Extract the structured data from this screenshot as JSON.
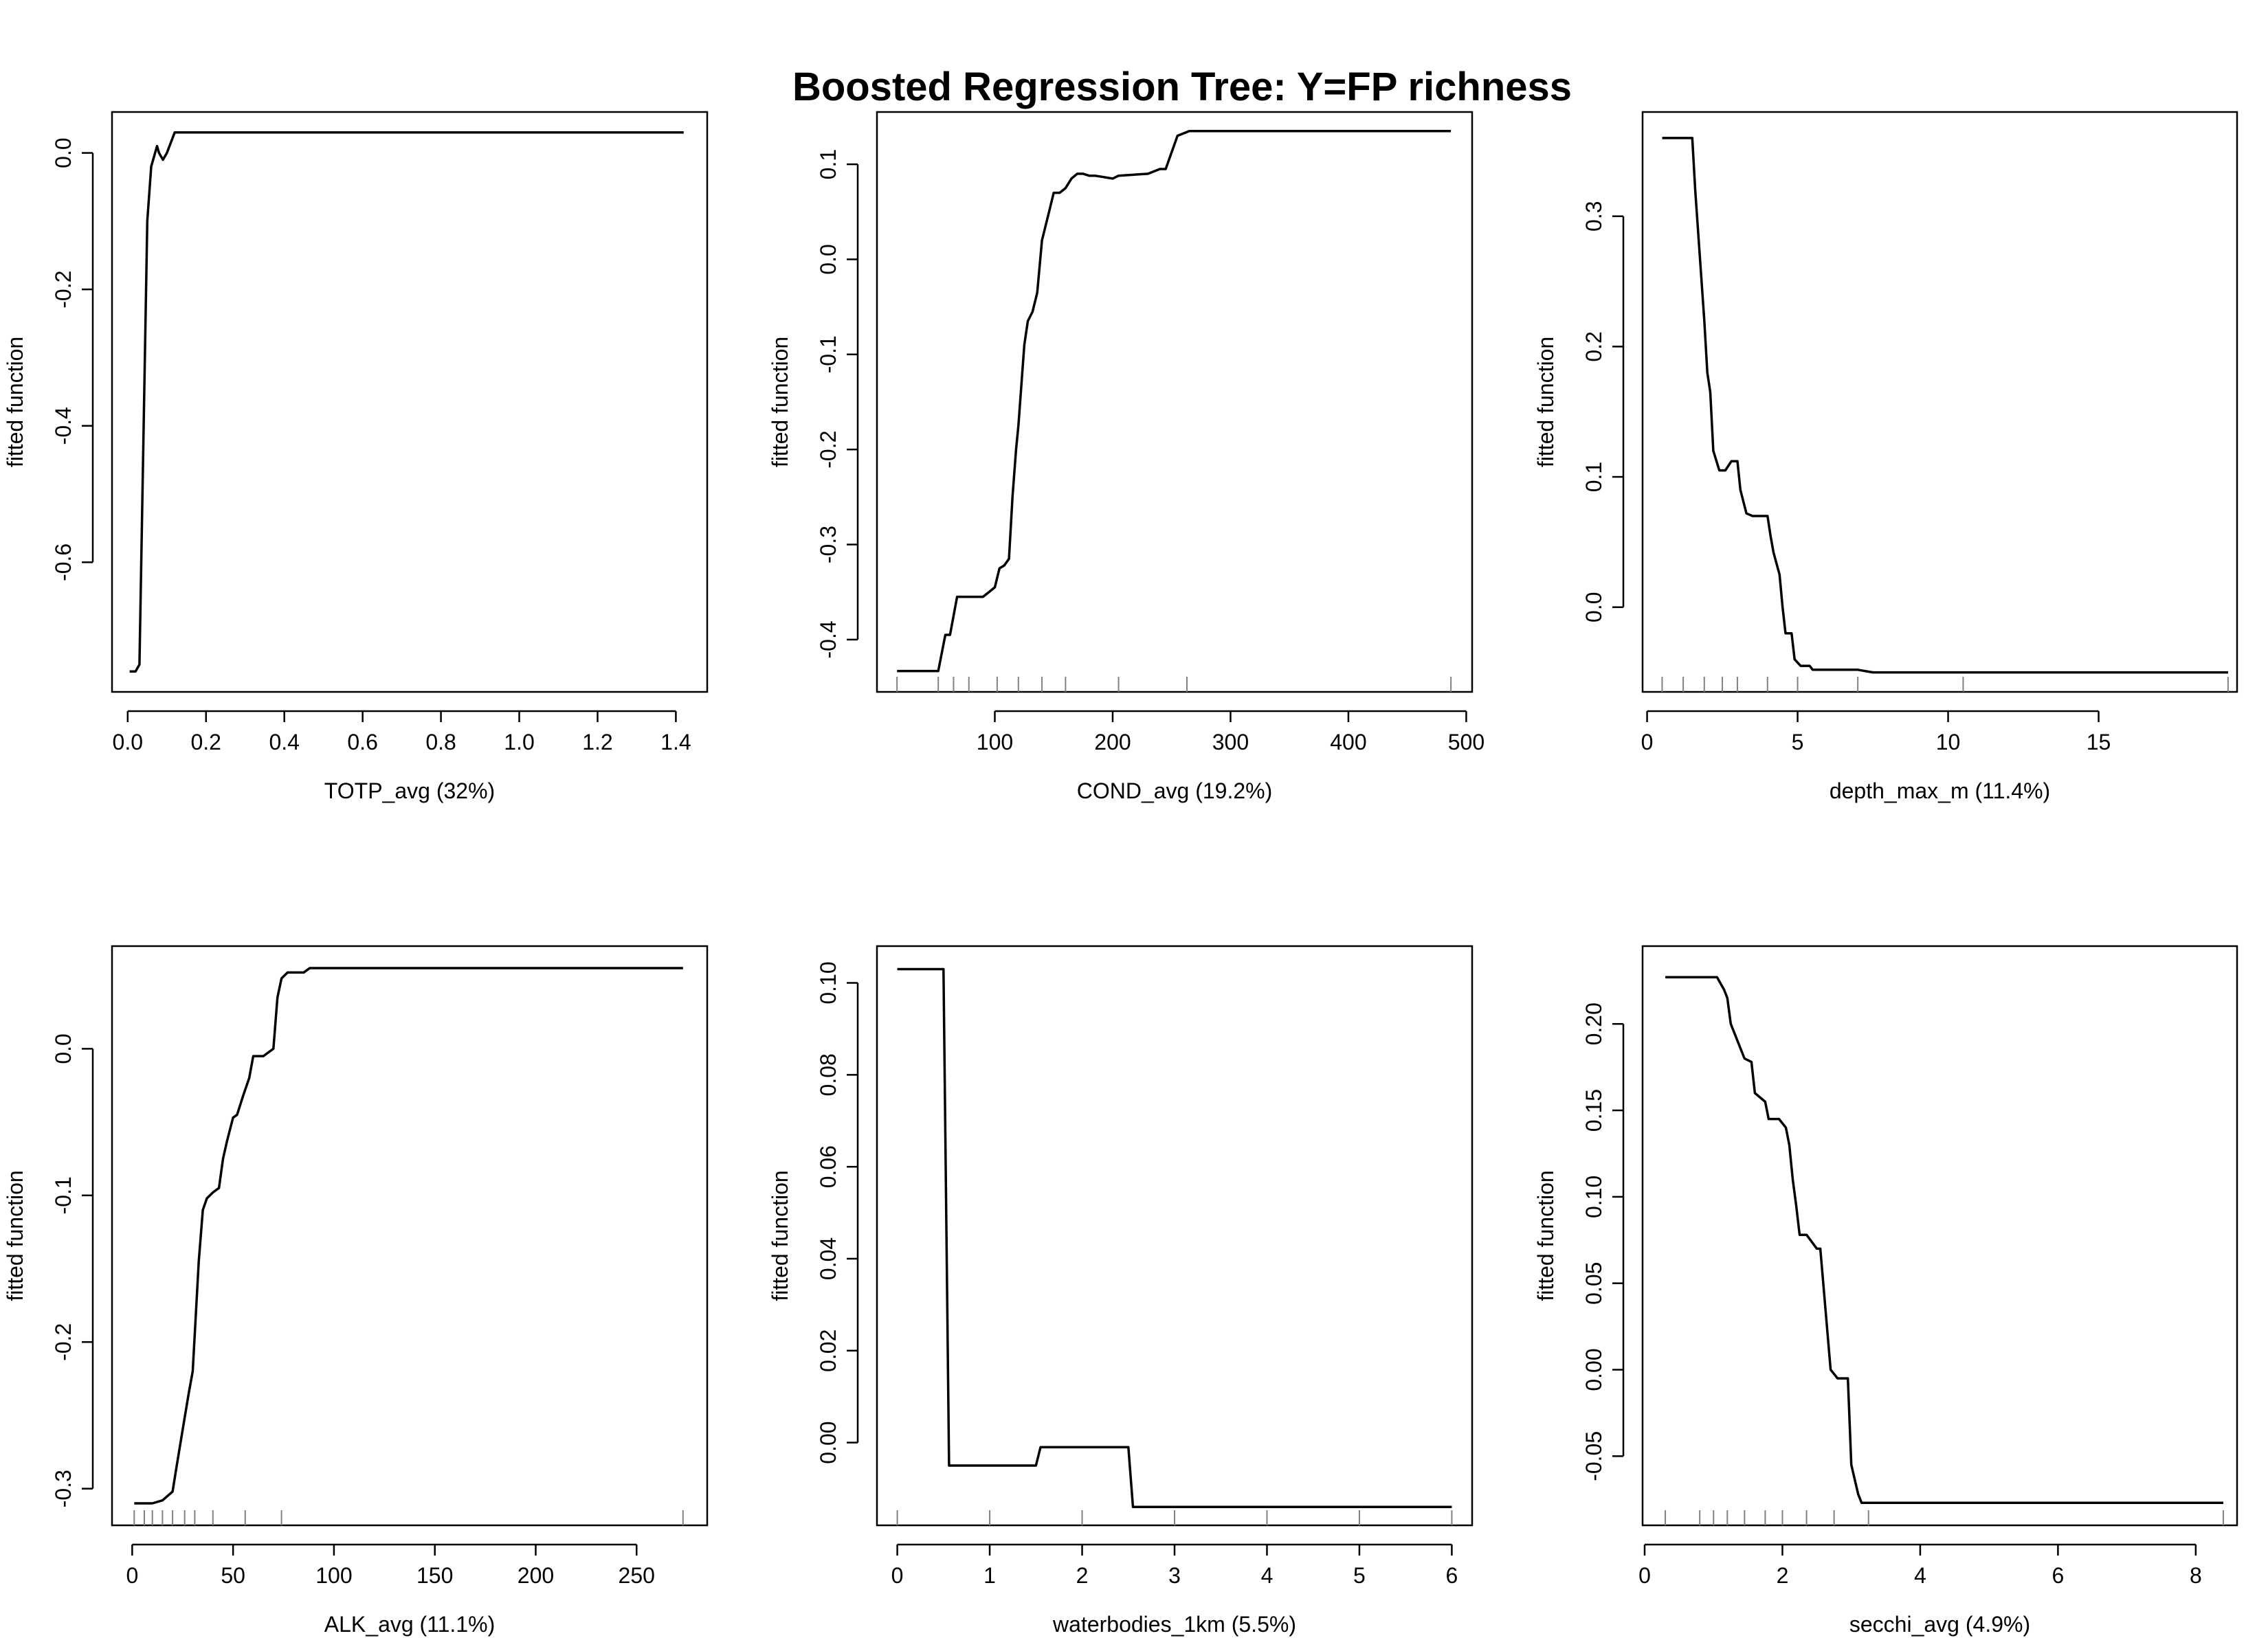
{
  "figure": {
    "title": "Boosted Regression Tree: Y=FP richness"
  },
  "chart_data": [
    {
      "type": "line",
      "xlabel": "TOTP_avg  (32%)",
      "ylabel": "fitted function",
      "xlim": [
        -0.04,
        1.48
      ],
      "ylim": [
        -0.79,
        0.06
      ],
      "xticks": [
        0.0,
        0.2,
        0.4,
        0.6,
        0.8,
        1.0,
        1.2,
        1.4
      ],
      "xtick_labels": [
        "0.0",
        "0.2",
        "0.4",
        "0.6",
        "0.8",
        "1.0",
        "1.2",
        "1.4"
      ],
      "yticks": [
        -0.6,
        -0.4,
        -0.2,
        0.0
      ],
      "ytick_labels": [
        "-0.6",
        "-0.4",
        "-0.2",
        "0.0"
      ],
      "rug": [],
      "x": [
        0.005,
        0.02,
        0.03,
        0.05,
        0.06,
        0.075,
        0.08,
        0.09,
        0.1,
        0.12,
        1.42
      ],
      "y": [
        -0.76,
        -0.76,
        -0.75,
        -0.1,
        -0.02,
        0.01,
        0.0,
        -0.01,
        0.0,
        0.03,
        0.03
      ]
    },
    {
      "type": "line",
      "xlabel": "COND_avg  (19.2%)",
      "ylabel": "fitted function",
      "xlim": [
        0,
        505
      ],
      "ylim": [
        -0.455,
        0.155
      ],
      "xticks": [
        100,
        200,
        300,
        400,
        500
      ],
      "xtick_labels": [
        "100",
        "200",
        "300",
        "400",
        "500"
      ],
      "yticks": [
        -0.4,
        -0.3,
        -0.2,
        -0.1,
        0.0,
        0.1
      ],
      "ytick_labels": [
        "-0.4",
        "-0.3",
        "-0.2",
        "-0.1",
        "0.0",
        "0.1"
      ],
      "rug": [
        17,
        52,
        65,
        78,
        102,
        120,
        140,
        160,
        205,
        263,
        487
      ],
      "x": [
        17,
        52,
        58,
        62,
        68,
        90,
        95,
        100,
        104,
        108,
        112,
        115,
        118,
        120,
        125,
        128,
        132,
        136,
        140,
        145,
        150,
        155,
        160,
        165,
        170,
        175,
        180,
        185,
        200,
        205,
        230,
        240,
        245,
        255,
        265,
        275,
        487
      ],
      "y": [
        -0.433,
        -0.433,
        -0.395,
        -0.395,
        -0.355,
        -0.355,
        -0.35,
        -0.345,
        -0.325,
        -0.322,
        -0.315,
        -0.25,
        -0.2,
        -0.175,
        -0.09,
        -0.065,
        -0.055,
        -0.035,
        0.02,
        0.045,
        0.07,
        0.07,
        0.075,
        0.085,
        0.09,
        0.09,
        0.088,
        0.088,
        0.085,
        0.088,
        0.09,
        0.095,
        0.095,
        0.13,
        0.135,
        0.135,
        0.135
      ]
    },
    {
      "type": "line",
      "xlabel": "depth_max_m  (11.4%)",
      "ylabel": "fitted function",
      "xlim": [
        -0.15,
        19.6
      ],
      "ylim": [
        -0.065,
        0.38
      ],
      "xticks": [
        0,
        5,
        10,
        15
      ],
      "xtick_labels": [
        "0",
        "5",
        "10",
        "15"
      ],
      "yticks": [
        0.0,
        0.1,
        0.2,
        0.3
      ],
      "ytick_labels": [
        "0.0",
        "0.1",
        "0.2",
        "0.3"
      ],
      "rug": [
        0.5,
        1.2,
        1.9,
        2.5,
        3.0,
        4.0,
        5.0,
        7.0,
        10.5,
        19.3
      ],
      "x": [
        0.5,
        1.5,
        1.6,
        1.9,
        2.0,
        2.1,
        2.2,
        2.4,
        2.6,
        2.8,
        3.0,
        3.1,
        3.3,
        3.5,
        4.0,
        4.1,
        4.2,
        4.4,
        4.5,
        4.6,
        4.8,
        4.9,
        5.1,
        5.4,
        5.5,
        7.0,
        7.5,
        19.3
      ],
      "y": [
        0.36,
        0.36,
        0.32,
        0.22,
        0.18,
        0.165,
        0.12,
        0.105,
        0.105,
        0.112,
        0.112,
        0.09,
        0.072,
        0.07,
        0.07,
        0.055,
        0.042,
        0.025,
        0.0,
        -0.02,
        -0.02,
        -0.04,
        -0.045,
        -0.045,
        -0.048,
        -0.048,
        -0.05,
        -0.05
      ]
    },
    {
      "type": "line",
      "xlabel": "ALK_avg  (11.1%)",
      "ylabel": "fitted function",
      "xlim": [
        -10,
        285
      ],
      "ylim": [
        -0.325,
        0.07
      ],
      "xticks": [
        0,
        50,
        100,
        150,
        200,
        250
      ],
      "xtick_labels": [
        "0",
        "50",
        "100",
        "150",
        "200",
        "250"
      ],
      "yticks": [
        -0.3,
        -0.2,
        -0.1,
        0.0
      ],
      "ytick_labels": [
        "-0.3",
        "-0.2",
        "-0.1",
        "0.0"
      ],
      "rug": [
        1,
        6,
        10,
        15,
        20,
        26,
        31,
        40,
        56,
        74,
        273
      ],
      "x": [
        1,
        7,
        10,
        15,
        20,
        22,
        25,
        28,
        30,
        33,
        35,
        37,
        40,
        43,
        45,
        47,
        50,
        52,
        55,
        58,
        60,
        63,
        65,
        70,
        72,
        74,
        77,
        80,
        85,
        88,
        90,
        273
      ],
      "y": [
        -0.31,
        -0.31,
        -0.31,
        -0.308,
        -0.302,
        -0.285,
        -0.26,
        -0.235,
        -0.22,
        -0.145,
        -0.11,
        -0.102,
        -0.098,
        -0.095,
        -0.075,
        -0.063,
        -0.047,
        -0.045,
        -0.032,
        -0.02,
        -0.005,
        -0.005,
        -0.005,
        0.0,
        0.035,
        0.048,
        0.052,
        0.052,
        0.052,
        0.055,
        0.055,
        0.055
      ]
    },
    {
      "type": "line",
      "xlabel": "waterbodies_1km  (5.5%)",
      "ylabel": "fitted function",
      "xlim": [
        -0.22,
        6.22
      ],
      "ylim": [
        -0.018,
        0.108
      ],
      "xticks": [
        0,
        1,
        2,
        3,
        4,
        5,
        6
      ],
      "xtick_labels": [
        "0",
        "1",
        "2",
        "3",
        "4",
        "5",
        "6"
      ],
      "yticks": [
        0.0,
        0.02,
        0.04,
        0.06,
        0.08,
        0.1
      ],
      "ytick_labels": [
        "0.00",
        "0.02",
        "0.04",
        "0.06",
        "0.08",
        "0.10"
      ],
      "rug": [
        0,
        1,
        2,
        3,
        4,
        5,
        6
      ],
      "x": [
        0,
        0.5,
        0.56,
        1.5,
        1.55,
        2.5,
        2.55,
        6
      ],
      "y": [
        0.103,
        0.103,
        -0.005,
        -0.005,
        -0.001,
        -0.001,
        -0.014,
        -0.014
      ]
    },
    {
      "type": "line",
      "xlabel": "secchi_avg  (4.9%)",
      "ylabel": "fitted function",
      "xlim": [
        -0.03,
        8.6
      ],
      "ylim": [
        -0.09,
        0.245
      ],
      "xticks": [
        0,
        2,
        4,
        6,
        8
      ],
      "xtick_labels": [
        "0",
        "2",
        "4",
        "6",
        "8"
      ],
      "yticks": [
        -0.05,
        0.0,
        0.05,
        0.1,
        0.15,
        0.2
      ],
      "ytick_labels": [
        "-0.05",
        "0.00",
        "0.05",
        "0.10",
        "0.15",
        "0.20"
      ],
      "rug": [
        0.3,
        0.8,
        1.0,
        1.2,
        1.45,
        1.75,
        2.0,
        2.35,
        2.75,
        3.25,
        8.4
      ],
      "x": [
        0.3,
        1.05,
        1.15,
        1.2,
        1.25,
        1.35,
        1.45,
        1.55,
        1.6,
        1.75,
        1.8,
        1.95,
        2.05,
        2.1,
        2.15,
        2.2,
        2.25,
        2.3,
        2.35,
        2.5,
        2.55,
        2.7,
        2.8,
        2.95,
        3.0,
        3.1,
        3.15,
        8.4
      ],
      "y": [
        0.227,
        0.227,
        0.22,
        0.215,
        0.2,
        0.19,
        0.18,
        0.178,
        0.16,
        0.155,
        0.145,
        0.145,
        0.14,
        0.13,
        0.11,
        0.095,
        0.078,
        0.078,
        0.078,
        0.07,
        0.07,
        0.0,
        -0.005,
        -0.005,
        -0.055,
        -0.072,
        -0.077,
        -0.077
      ]
    }
  ]
}
